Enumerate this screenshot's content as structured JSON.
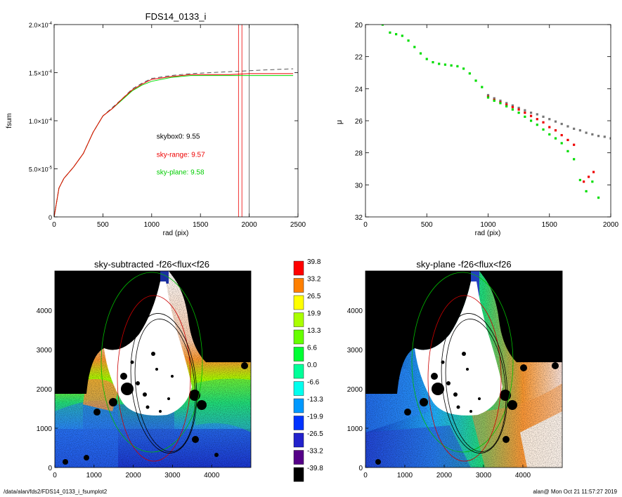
{
  "footer": {
    "path": "/data/alan/fds2/FDS14_0133_i_fsumplot2",
    "stamp": "alan@  Mon Oct 21 11:57:27 2019"
  },
  "chart_data": [
    {
      "type": "line",
      "title": "FDS14_0133_i",
      "xlabel": "rad (pix)",
      "ylabel": "fsum",
      "xlim": [
        0,
        2500
      ],
      "ylim": [
        0,
        0.0002
      ],
      "x_ticks": [
        "0",
        "500",
        "1000",
        "1500",
        "2000",
        "2500"
      ],
      "y_ticks": [
        {
          "value": 0,
          "mant": "0",
          "exp": ""
        },
        {
          "value": 5e-05,
          "mant": "5.0×10",
          "exp": "-5"
        },
        {
          "value": 0.0001,
          "mant": "1.0×10",
          "exp": "-4"
        },
        {
          "value": 0.00015,
          "mant": "1.5×10",
          "exp": "-4"
        },
        {
          "value": 0.0002,
          "mant": "2.0×10",
          "exp": "-4"
        }
      ],
      "series": [
        {
          "color": "#555555",
          "dash": true,
          "x": [
            0,
            50,
            100,
            200,
            300,
            400,
            500,
            600,
            700,
            800,
            900,
            1000,
            1200,
            1400,
            1600,
            1800,
            2000,
            2200,
            2450
          ],
          "y": [
            0,
            3e-05,
            4e-05,
            5.2e-05,
            6.6e-05,
            8.8e-05,
            0.000105,
            0.000114,
            0.000123,
            0.000133,
            0.000139,
            0.000144,
            0.000147,
            0.000149,
            0.00015,
            0.000151,
            0.000152,
            0.000153,
            0.000154
          ]
        },
        {
          "color": "#00dd00",
          "dash": false,
          "x": [
            0,
            50,
            100,
            200,
            300,
            400,
            500,
            600,
            700,
            800,
            900,
            1000,
            1200,
            1400,
            1600,
            1800,
            2000,
            2200,
            2450
          ],
          "y": [
            0,
            3e-05,
            4e-05,
            5.2e-05,
            6.6e-05,
            8.8e-05,
            0.000105,
            0.000113,
            0.000122,
            0.000131,
            0.000137,
            0.000141,
            0.000145,
            0.000147,
            0.000147,
            0.000147,
            0.000147,
            0.000147,
            0.000147
          ]
        },
        {
          "color": "#ee0000",
          "dash": false,
          "x": [
            0,
            50,
            100,
            200,
            300,
            400,
            500,
            600,
            700,
            800,
            900,
            1000,
            1200,
            1400,
            1600,
            1800,
            2000,
            2200,
            2450
          ],
          "y": [
            0,
            3e-05,
            4e-05,
            5.2e-05,
            6.6e-05,
            8.8e-05,
            0.000105,
            0.000113,
            0.000123,
            0.000132,
            0.000138,
            0.000143,
            0.000146,
            0.000148,
            0.000148,
            0.000148,
            0.000149,
            0.000149,
            0.000149
          ]
        }
      ],
      "vlines": [
        {
          "x": 1890,
          "color": "#ee0000"
        },
        {
          "x": 1925,
          "color": "#ee0000"
        },
        {
          "x": 2000,
          "color": "#555555"
        }
      ],
      "annotations": [
        {
          "label": "skybox0:",
          "value": "9.55",
          "color": "#000000",
          "x": 1050,
          "y": 8.15e-05
        },
        {
          "label": "sky-range:",
          "value": "9.57",
          "color": "#ee0000",
          "x": 1050,
          "y": 6.25e-05
        },
        {
          "label": "sky-plane:",
          "value": "9.58",
          "color": "#00cc00",
          "x": 1050,
          "y": 4.4e-05
        }
      ]
    },
    {
      "type": "scatter",
      "xlabel": "rad (pix)",
      "ylabel": "μ",
      "xlim": [
        0,
        2000
      ],
      "ylim": [
        32,
        20
      ],
      "x_ticks": [
        "0",
        "500",
        "1000",
        "1500",
        "2000"
      ],
      "y_ticks": [
        "20",
        "22",
        "24",
        "26",
        "28",
        "30",
        "32"
      ],
      "series": [
        {
          "color": "#777777",
          "x": [
            1000,
            1050,
            1100,
            1150,
            1200,
            1250,
            1300,
            1350,
            1400,
            1450,
            1500,
            1550,
            1600,
            1650,
            1700,
            1750,
            1800,
            1850,
            1900,
            1950,
            2000
          ],
          "y": [
            24.4,
            24.6,
            24.75,
            24.9,
            25.05,
            25.2,
            25.35,
            25.5,
            25.6,
            25.75,
            25.9,
            26.05,
            26.2,
            26.35,
            26.5,
            26.6,
            26.75,
            26.85,
            26.95,
            27.0,
            27.1
          ]
        },
        {
          "color": "#ee0000",
          "x": [
            1000,
            1050,
            1100,
            1150,
            1200,
            1250,
            1300,
            1350,
            1400,
            1450,
            1500,
            1550,
            1600,
            1650,
            1700,
            1780,
            1820,
            1860
          ],
          "y": [
            24.5,
            24.7,
            24.85,
            25.0,
            25.15,
            25.3,
            25.5,
            25.7,
            25.9,
            26.1,
            26.4,
            26.6,
            26.9,
            27.2,
            27.5,
            29.8,
            29.5,
            29.2
          ]
        },
        {
          "color": "#00dd00",
          "x": [
            140,
            200,
            250,
            300,
            350,
            400,
            450,
            500,
            550,
            600,
            650,
            700,
            750,
            800,
            850,
            900,
            950,
            1000,
            1050,
            1100,
            1150,
            1200,
            1250,
            1300,
            1350,
            1400,
            1450,
            1500,
            1550,
            1600,
            1650,
            1700,
            1750,
            1800,
            1850,
            1900
          ],
          "y": [
            20.0,
            20.5,
            20.6,
            20.7,
            21.0,
            21.4,
            21.8,
            22.15,
            22.35,
            22.45,
            22.5,
            22.55,
            22.6,
            22.75,
            23.05,
            23.5,
            23.9,
            24.55,
            24.75,
            24.9,
            25.1,
            25.3,
            25.5,
            25.75,
            26.0,
            26.25,
            26.55,
            26.85,
            27.1,
            27.4,
            27.9,
            28.4,
            29.7,
            30.4,
            29.8,
            30.8
          ]
        }
      ]
    },
    {
      "type": "heatmap",
      "title": "sky-subtracted -f26<flux<f26",
      "xlim": [
        0,
        5000
      ],
      "ylim": [
        0,
        5000
      ],
      "x_ticks": [
        "0",
        "1000",
        "2000",
        "3000",
        "4000"
      ],
      "y_ticks": [
        "0",
        "1000",
        "2000",
        "3000",
        "4000"
      ]
    },
    {
      "type": "heatmap",
      "title": "sky-plane -f26<flux<f26",
      "xlim": [
        0,
        5000
      ],
      "ylim": [
        0,
        5000
      ],
      "x_ticks": [
        "0",
        "1000",
        "2000",
        "3000",
        "4000"
      ],
      "y_ticks": [
        "0",
        "1000",
        "2000",
        "3000",
        "4000"
      ]
    },
    {
      "type": "colorbar",
      "labels": [
        "39.8",
        "33.2",
        "26.5",
        "19.9",
        "13.3",
        "6.6",
        "0.0",
        "-6.6",
        "-13.3",
        "-19.9",
        "-26.5",
        "-33.2",
        "-39.8"
      ],
      "colors": [
        "#ff0000",
        "#ff8000",
        "#ffff00",
        "#aaff00",
        "#66ff00",
        "#00ff33",
        "#00ff99",
        "#00ffee",
        "#0099ff",
        "#0033ff",
        "#2222cc",
        "#550088",
        "#000000"
      ]
    }
  ]
}
